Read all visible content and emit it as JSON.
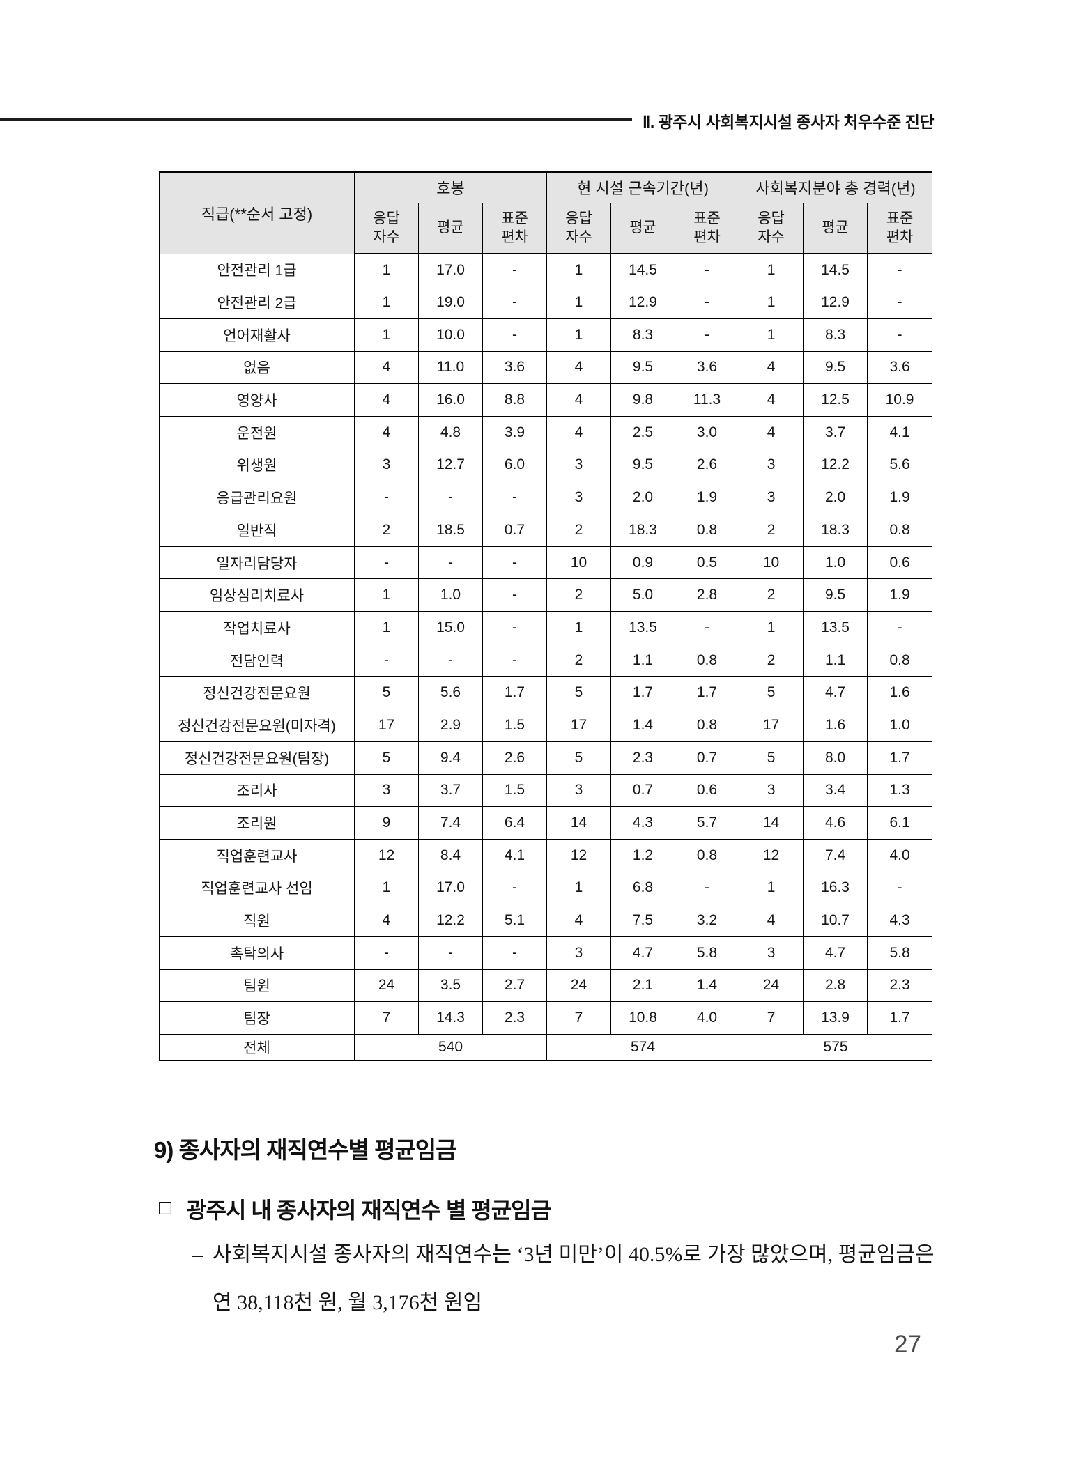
{
  "header": {
    "title": "Ⅱ. 광주시 사회복지시설 종사자 처우수준 진단"
  },
  "table": {
    "col1_header": "직급(**순서 고정)",
    "groups": [
      {
        "label": "호봉"
      },
      {
        "label": "현 시설 근속기간(년)"
      },
      {
        "label": "사회복지분야 총 경력(년)"
      }
    ],
    "sub_headers": [
      "응답\n자수",
      "평균",
      "표준\n편차"
    ],
    "rows": [
      {
        "label": "안전관리 1급",
        "values": [
          "1",
          "17.0",
          "-",
          "1",
          "14.5",
          "-",
          "1",
          "14.5",
          "-"
        ]
      },
      {
        "label": "안전관리 2급",
        "values": [
          "1",
          "19.0",
          "-",
          "1",
          "12.9",
          "-",
          "1",
          "12.9",
          "-"
        ]
      },
      {
        "label": "언어재활사",
        "values": [
          "1",
          "10.0",
          "-",
          "1",
          "8.3",
          "-",
          "1",
          "8.3",
          "-"
        ]
      },
      {
        "label": "없음",
        "values": [
          "4",
          "11.0",
          "3.6",
          "4",
          "9.5",
          "3.6",
          "4",
          "9.5",
          "3.6"
        ]
      },
      {
        "label": "영양사",
        "values": [
          "4",
          "16.0",
          "8.8",
          "4",
          "9.8",
          "11.3",
          "4",
          "12.5",
          "10.9"
        ]
      },
      {
        "label": "운전원",
        "values": [
          "4",
          "4.8",
          "3.9",
          "4",
          "2.5",
          "3.0",
          "4",
          "3.7",
          "4.1"
        ]
      },
      {
        "label": "위생원",
        "values": [
          "3",
          "12.7",
          "6.0",
          "3",
          "9.5",
          "2.6",
          "3",
          "12.2",
          "5.6"
        ]
      },
      {
        "label": "응급관리요원",
        "values": [
          "-",
          "-",
          "-",
          "3",
          "2.0",
          "1.9",
          "3",
          "2.0",
          "1.9"
        ]
      },
      {
        "label": "일반직",
        "values": [
          "2",
          "18.5",
          "0.7",
          "2",
          "18.3",
          "0.8",
          "2",
          "18.3",
          "0.8"
        ]
      },
      {
        "label": "일자리담당자",
        "values": [
          "-",
          "-",
          "-",
          "10",
          "0.9",
          "0.5",
          "10",
          "1.0",
          "0.6"
        ]
      },
      {
        "label": "임상심리치료사",
        "values": [
          "1",
          "1.0",
          "-",
          "2",
          "5.0",
          "2.8",
          "2",
          "9.5",
          "1.9"
        ]
      },
      {
        "label": "작업치료사",
        "values": [
          "1",
          "15.0",
          "-",
          "1",
          "13.5",
          "-",
          "1",
          "13.5",
          "-"
        ]
      },
      {
        "label": "전담인력",
        "values": [
          "-",
          "-",
          "-",
          "2",
          "1.1",
          "0.8",
          "2",
          "1.1",
          "0.8"
        ]
      },
      {
        "label": "정신건강전문요원",
        "values": [
          "5",
          "5.6",
          "1.7",
          "5",
          "1.7",
          "1.7",
          "5",
          "4.7",
          "1.6"
        ]
      },
      {
        "label": "정신건강전문요원(미자격)",
        "values": [
          "17",
          "2.9",
          "1.5",
          "17",
          "1.4",
          "0.8",
          "17",
          "1.6",
          "1.0"
        ]
      },
      {
        "label": "정신건강전문요원(팀장)",
        "values": [
          "5",
          "9.4",
          "2.6",
          "5",
          "2.3",
          "0.7",
          "5",
          "8.0",
          "1.7"
        ]
      },
      {
        "label": "조리사",
        "values": [
          "3",
          "3.7",
          "1.5",
          "3",
          "0.7",
          "0.6",
          "3",
          "3.4",
          "1.3"
        ]
      },
      {
        "label": "조리원",
        "values": [
          "9",
          "7.4",
          "6.4",
          "14",
          "4.3",
          "5.7",
          "14",
          "4.6",
          "6.1"
        ]
      },
      {
        "label": "직업훈련교사",
        "values": [
          "12",
          "8.4",
          "4.1",
          "12",
          "1.2",
          "0.8",
          "12",
          "7.4",
          "4.0"
        ]
      },
      {
        "label": "직업훈련교사 선임",
        "values": [
          "1",
          "17.0",
          "-",
          "1",
          "6.8",
          "-",
          "1",
          "16.3",
          "-"
        ]
      },
      {
        "label": "직원",
        "values": [
          "4",
          "12.2",
          "5.1",
          "4",
          "7.5",
          "3.2",
          "4",
          "10.7",
          "4.3"
        ]
      },
      {
        "label": "촉탁의사",
        "values": [
          "-",
          "-",
          "-",
          "3",
          "4.7",
          "5.8",
          "3",
          "4.7",
          "5.8"
        ]
      },
      {
        "label": "팀원",
        "values": [
          "24",
          "3.5",
          "2.7",
          "24",
          "2.1",
          "1.4",
          "24",
          "2.8",
          "2.3"
        ]
      },
      {
        "label": "팀장",
        "values": [
          "7",
          "14.3",
          "2.3",
          "7",
          "10.8",
          "4.0",
          "7",
          "13.9",
          "1.7"
        ]
      }
    ],
    "total": {
      "label": "전체",
      "values": [
        "540",
        "574",
        "575"
      ]
    }
  },
  "sections": {
    "heading": "9) 종사자의 재직연수별 평균임금",
    "subheading_marker": "□",
    "subheading": "광주시 내 종사자의 재직연수 별 평균임금",
    "bullet_marker": "–",
    "bullet_text": "사회복지시설 종사자의 재직연수는 ‘3년 미만’이 40.5%로 가장 많았으며, 평균임금은 연 38,118천 원, 월 3,176천 원임"
  },
  "page_number": "27"
}
